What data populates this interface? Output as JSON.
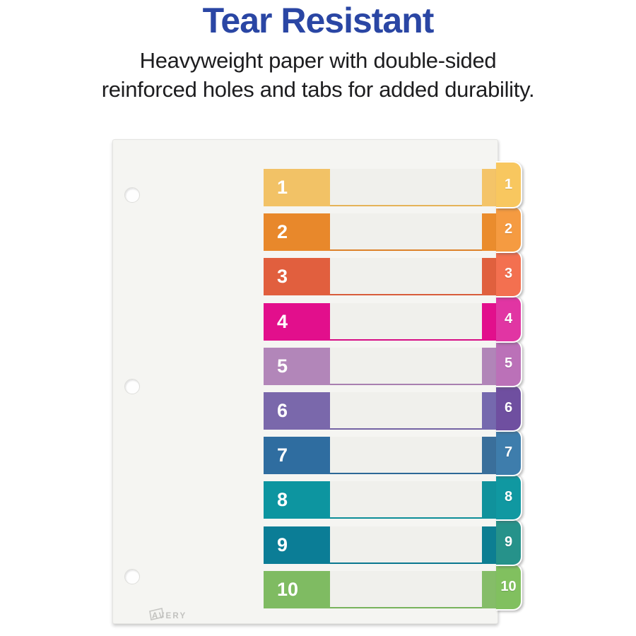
{
  "header": {
    "title": "Tear Resistant",
    "title_color": "#2a46a4",
    "subtitle_line1": "Heavyweight paper with double-sided",
    "subtitle_line2": "reinforced holes and tabs for added durability.",
    "subtitle_color": "#1d1d1f"
  },
  "sheet": {
    "brand": "AVERY",
    "brand_color": "#c2c2bf",
    "paper_color": "#f5f5f2",
    "band_color": "#f0f0ec",
    "rows": [
      {
        "label": "1",
        "block": "#F2C266",
        "strip": "#F4C468",
        "tab": "#F8C75F",
        "rule": "#E5B358"
      },
      {
        "label": "2",
        "block": "#E8882B",
        "strip": "#EA8C2D",
        "tab": "#F59B41",
        "rule": "#DD8229"
      },
      {
        "label": "3",
        "block": "#E15F3E",
        "strip": "#E0603E",
        "tab": "#F37050",
        "rule": "#D85C3B"
      },
      {
        "label": "4",
        "block": "#E20F8C",
        "strip": "#E20F8C",
        "tab": "#E135A3",
        "rule": "#D60E85"
      },
      {
        "label": "5",
        "block": "#B286B9",
        "strip": "#B185B8",
        "tab": "#BB71B8",
        "rule": "#A87FB0"
      },
      {
        "label": "6",
        "block": "#7A68AB",
        "strip": "#7569AE",
        "tab": "#6F4FA0",
        "rule": "#7463A3"
      },
      {
        "label": "7",
        "block": "#2F6DA0",
        "strip": "#3A6F9B",
        "tab": "#3E7DAC",
        "rule": "#2D6897"
      },
      {
        "label": "8",
        "block": "#0D95A0",
        "strip": "#10929C",
        "tab": "#1098A1",
        "rule": "#0C8D98"
      },
      {
        "label": "9",
        "block": "#0B7D96",
        "strip": "#0D7E92",
        "tab": "#26928A",
        "rule": "#0A7790"
      },
      {
        "label": "10",
        "block": "#7FBB62",
        "strip": "#85BD68",
        "tab": "#81C05F",
        "rule": "#78B35C"
      }
    ]
  }
}
